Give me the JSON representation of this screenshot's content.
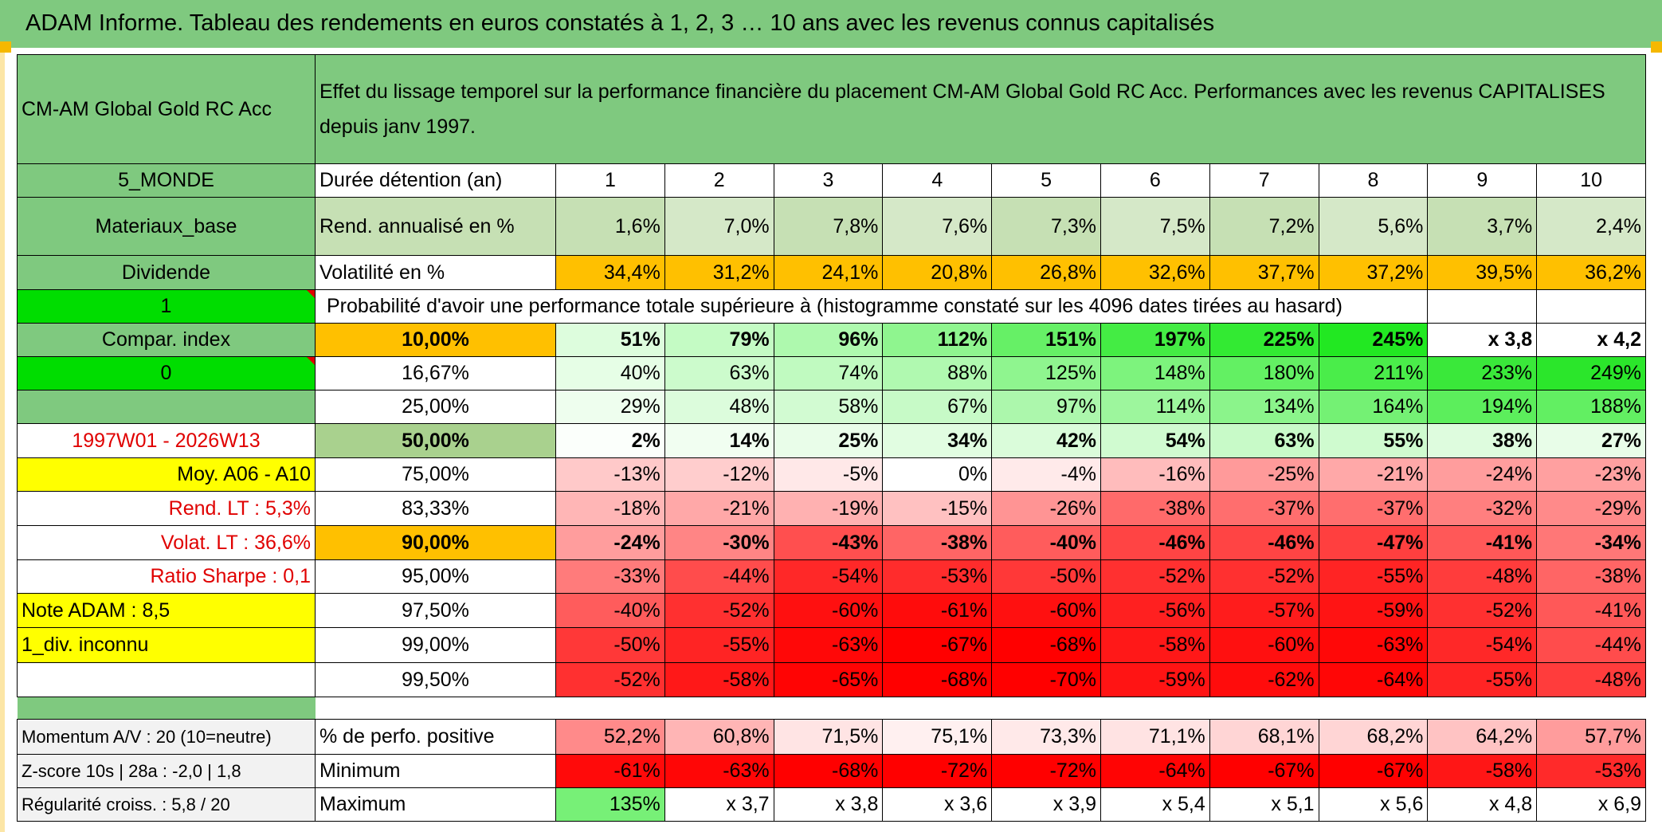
{
  "header": {
    "title": "ADAM Informe. Tableau des rendements en euros constatés à 1, 2, 3 … 10 ans avec les revenus connus capitalisés"
  },
  "fund": {
    "name": "CM-AM Global Gold RC Acc",
    "description": "Effet du lissage temporel sur la performance financière du placement CM-AM Global Gold RC Acc. Performances avec les revenus CAPITALISES depuis janv 1997."
  },
  "side": {
    "zone": "5_MONDE",
    "sector": "Materiaux_base",
    "income_type": "Dividende",
    "flag1": "1",
    "compare_label": "Compar. index",
    "flag2": "0",
    "blank": "",
    "period": "1997W01 - 2026W13",
    "avg": "Moy. A06 - A10",
    "rend_lt": "Rend. LT :   5,3%",
    "volat_lt": "Volat. LT :   36,6%",
    "sharpe": "Ratio Sharpe :    0,1",
    "note": "Note ADAM : 8,5",
    "div": "1_div. inconnu"
  },
  "labels": {
    "duration": "Durée détention (an)",
    "rend": "Rend. annualisé en %",
    "vol": "Volatilité en %",
    "proba": "Probabilité d'avoir une performance totale supérieure à (histogramme constaté sur les 4096 dates tirées au hasard)"
  },
  "years": [
    "1",
    "2",
    "3",
    "4",
    "5",
    "6",
    "7",
    "8",
    "9",
    "10"
  ],
  "rendements": [
    "1,6%",
    "7,0%",
    "7,8%",
    "7,6%",
    "7,3%",
    "7,5%",
    "7,2%",
    "5,6%",
    "3,7%",
    "2,4%"
  ],
  "volatilites": [
    "34,4%",
    "31,2%",
    "24,1%",
    "20,8%",
    "26,8%",
    "32,6%",
    "37,7%",
    "37,2%",
    "39,5%",
    "36,2%"
  ],
  "colors": {
    "title_green": "#7fc97f",
    "bright_green": "#00dd00",
    "yellow": "#ffff00",
    "orange": "#ffc000",
    "red_text": "#e00000"
  },
  "quantiles": [
    {
      "q": "10,00%",
      "values": [
        "51%",
        "79%",
        "96%",
        "112%",
        "151%",
        "197%",
        "225%",
        "245%",
        "x 3,8",
        "x 4,2"
      ],
      "colors": [
        "#ddfddd",
        "#c4fbc4",
        "#aef9ae",
        "#8ff58f",
        "#66f066",
        "#44ec44",
        "#33ea33",
        "#22e822",
        "#ffffff",
        "#ffffff"
      ],
      "qcolor": "#ffc000",
      "bold": true
    },
    {
      "q": "16,67%",
      "values": [
        "40%",
        "63%",
        "74%",
        "88%",
        "125%",
        "148%",
        "180%",
        "211%",
        "233%",
        "249%"
      ],
      "colors": [
        "#e6fee6",
        "#ccfbcc",
        "#c0fac0",
        "#b0f9b0",
        "#8ff58f",
        "#7df37d",
        "#63f063",
        "#4aed4a",
        "#3ae83a",
        "#2be62b"
      ],
      "qcolor": "#ffffff",
      "bold": false
    },
    {
      "q": "25,00%",
      "values": [
        "29%",
        "48%",
        "58%",
        "67%",
        "97%",
        "114%",
        "134%",
        "164%",
        "194%",
        "188%"
      ],
      "colors": [
        "#eefeee",
        "#dcfcdc",
        "#d2fbd2",
        "#c7fac7",
        "#acf7ac",
        "#9df69d",
        "#8bf48b",
        "#74f174",
        "#5cee5c",
        "#62ef62"
      ],
      "qcolor": "#ffffff",
      "bold": false
    },
    {
      "q": "50,00%",
      "values": [
        "2%",
        "14%",
        "25%",
        "34%",
        "42%",
        "54%",
        "63%",
        "55%",
        "38%",
        "27%"
      ],
      "colors": [
        "#fbfffb",
        "#f1fef1",
        "#e9fde9",
        "#e1fde1",
        "#dafcda",
        "#d0fbd0",
        "#c8fac8",
        "#cffbcf",
        "#defcde",
        "#e8fde8"
      ],
      "qcolor": "#a9d18e",
      "bold": true
    },
    {
      "q": "75,00%",
      "values": [
        "-13%",
        "-12%",
        "-5%",
        "0%",
        "-4%",
        "-16%",
        "-25%",
        "-21%",
        "-24%",
        "-23%"
      ],
      "colors": [
        "#ffc9c9",
        "#ffcdcd",
        "#ffe8e8",
        "#ffffff",
        "#ffeaea",
        "#ffbcbc",
        "#ff9a9a",
        "#ffa8a8",
        "#ff9d9d",
        "#ffa0a0"
      ],
      "qcolor": "#ffffff",
      "bold": false
    },
    {
      "q": "83,33%",
      "values": [
        "-18%",
        "-21%",
        "-19%",
        "-15%",
        "-26%",
        "-38%",
        "-37%",
        "-37%",
        "-32%",
        "-29%"
      ],
      "colors": [
        "#ffb6b6",
        "#ffa8a8",
        "#ffb1b1",
        "#ffc1c1",
        "#ff9494",
        "#ff6a6a",
        "#ff6e6e",
        "#ff6e6e",
        "#ff7f7f",
        "#ff8a8a"
      ],
      "qcolor": "#ffffff",
      "bold": false
    },
    {
      "q": "90,00%",
      "values": [
        "-24%",
        "-30%",
        "-43%",
        "-38%",
        "-40%",
        "-46%",
        "-46%",
        "-47%",
        "-41%",
        "-34%"
      ],
      "colors": [
        "#ff9d9d",
        "#ff8585",
        "#ff4f4f",
        "#ff6565",
        "#ff5c5c",
        "#ff4444",
        "#ff4444",
        "#ff3f3f",
        "#ff5858",
        "#ff7777"
      ],
      "qcolor": "#ffc000",
      "bold": true
    },
    {
      "q": "95,00%",
      "values": [
        "-33%",
        "-44%",
        "-54%",
        "-53%",
        "-50%",
        "-52%",
        "-52%",
        "-55%",
        "-48%",
        "-38%"
      ],
      "colors": [
        "#ff7b7b",
        "#ff4c4c",
        "#ff2828",
        "#ff2c2c",
        "#ff3838",
        "#ff3030",
        "#ff3030",
        "#ff2424",
        "#ff3c3c",
        "#ff6565"
      ],
      "qcolor": "#ffffff",
      "bold": false
    },
    {
      "q": "97,50%",
      "values": [
        "-40%",
        "-52%",
        "-60%",
        "-61%",
        "-60%",
        "-56%",
        "-57%",
        "-59%",
        "-52%",
        "-41%"
      ],
      "colors": [
        "#ff5c5c",
        "#ff3030",
        "#ff1010",
        "#ff0c0c",
        "#ff1010",
        "#ff2020",
        "#ff1c1c",
        "#ff1414",
        "#ff3030",
        "#ff5858"
      ],
      "qcolor": "#ffffff",
      "bold": false
    },
    {
      "q": "99,00%",
      "values": [
        "-50%",
        "-55%",
        "-63%",
        "-67%",
        "-68%",
        "-58%",
        "-60%",
        "-63%",
        "-54%",
        "-44%"
      ],
      "colors": [
        "#ff3838",
        "#ff2424",
        "#ff0808",
        "#ff0000",
        "#ff0000",
        "#ff1818",
        "#ff1010",
        "#ff0808",
        "#ff2828",
        "#ff4c4c"
      ],
      "qcolor": "#ffffff",
      "bold": false
    },
    {
      "q": "99,50%",
      "values": [
        "-52%",
        "-58%",
        "-65%",
        "-68%",
        "-70%",
        "-59%",
        "-62%",
        "-64%",
        "-55%",
        "-48%"
      ],
      "colors": [
        "#ff3030",
        "#ff1818",
        "#ff0404",
        "#ff0000",
        "#ff0000",
        "#ff1414",
        "#ff0c0c",
        "#ff0606",
        "#ff2424",
        "#ff3c3c"
      ],
      "qcolor": "#ffffff",
      "bold": false
    }
  ],
  "bottom": {
    "momentum": "Momentum A/V : 20 (10=neutre)",
    "zscore": "Z-score 10s | 28a : -2,0 | 1,8",
    "regularite": "Régularité croiss. : 5,8 / 20",
    "pos_label": "% de perfo. positive",
    "min_label": "Minimum",
    "max_label": "Maximum",
    "positive": [
      "52,2%",
      "60,8%",
      "71,5%",
      "75,1%",
      "73,3%",
      "71,1%",
      "68,1%",
      "68,2%",
      "64,2%",
      "57,7%"
    ],
    "positive_colors": [
      "#ff8a8a",
      "#ffb5b5",
      "#ffe4e4",
      "#fff0f0",
      "#ffe9e9",
      "#ffe3e3",
      "#ffd5d5",
      "#ffd5d5",
      "#ffc3c3",
      "#ff9c9c"
    ],
    "minimum": [
      "-61%",
      "-63%",
      "-68%",
      "-72%",
      "-72%",
      "-64%",
      "-67%",
      "-67%",
      "-58%",
      "-53%"
    ],
    "minimum_colors": [
      "#ff0a0a",
      "#ff0606",
      "#ff0000",
      "#ff0000",
      "#ff0000",
      "#ff0404",
      "#ff0000",
      "#ff0000",
      "#ff1616",
      "#ff2a2a"
    ],
    "maximum": [
      "135%",
      "x 3,7",
      "x 3,8",
      "x 3,6",
      "x 3,9",
      "x 5,4",
      "x 5,1",
      "x 5,6",
      "x 4,8",
      "x 6,9"
    ],
    "maximum_colors": [
      "#77f077",
      "#ffffff",
      "#ffffff",
      "#ffffff",
      "#ffffff",
      "#ffffff",
      "#ffffff",
      "#ffffff",
      "#ffffff",
      "#ffffff"
    ]
  }
}
